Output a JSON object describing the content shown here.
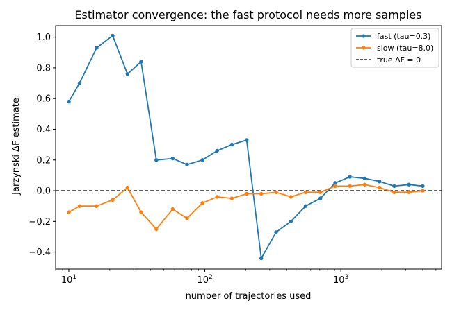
{
  "chart_data": {
    "type": "line",
    "title": "Estimator convergence: the fast protocol needs more samples",
    "xlabel": "number of trajectories used",
    "ylabel": "Jarzynski ΔF estimate",
    "xscale": "log",
    "xlim": [
      8,
      5500
    ],
    "ylim": [
      -0.51,
      1.075
    ],
    "x_ticks": [
      10,
      100,
      1000
    ],
    "x_tick_labels": [
      "10",
      "10",
      "10"
    ],
    "x_tick_exponents": [
      "1",
      "2",
      "3"
    ],
    "y_ticks": [
      -0.4,
      -0.2,
      0.0,
      0.2,
      0.4,
      0.6,
      0.8,
      1.0
    ],
    "y_tick_labels": [
      "−0.4",
      "−0.2",
      "0.0",
      "0.2",
      "0.4",
      "0.6",
      "0.8",
      "1.0"
    ],
    "grid": false,
    "legend_position": "top-right",
    "x": [
      10,
      12,
      16,
      21,
      27,
      34,
      44,
      58,
      74,
      96,
      123,
      158,
      203,
      260,
      334,
      429,
      551,
      707,
      908,
      1166,
      1497,
      1922,
      2468,
      3170,
      4000
    ],
    "series": [
      {
        "name": "fast (tau=0.3)",
        "color": "#1f77b4",
        "values": [
          0.58,
          0.7,
          0.93,
          1.01,
          0.76,
          0.84,
          0.2,
          0.21,
          0.17,
          0.2,
          0.26,
          0.3,
          0.33,
          -0.44,
          -0.27,
          -0.2,
          -0.1,
          -0.05,
          0.05,
          0.09,
          0.08,
          0.06,
          0.03,
          0.04,
          0.03
        ]
      },
      {
        "name": "slow (tau=8.0)",
        "color": "#ff7f0e",
        "values": [
          -0.14,
          -0.1,
          -0.1,
          -0.06,
          0.02,
          -0.14,
          -0.25,
          -0.12,
          -0.18,
          -0.08,
          -0.04,
          -0.05,
          -0.02,
          -0.02,
          -0.01,
          -0.04,
          -0.01,
          -0.01,
          0.03,
          0.03,
          0.04,
          0.02,
          -0.01,
          -0.01,
          0.0
        ]
      }
    ],
    "reference_lines": [
      {
        "name": "true ΔF = 0",
        "y": 0.0,
        "color": "#000000",
        "style": "dashed"
      }
    ]
  }
}
